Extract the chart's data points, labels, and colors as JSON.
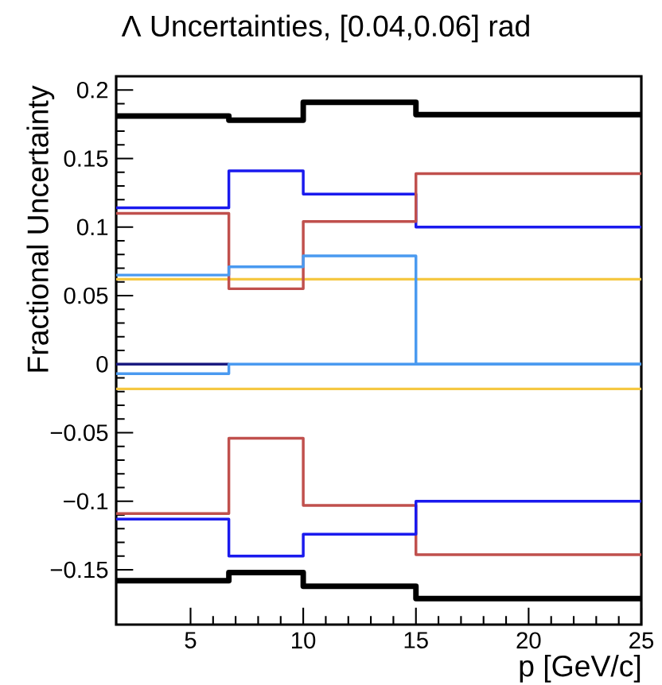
{
  "chart_data": {
    "type": "step",
    "title": "Λ Uncertainties, [0.04,0.06] rad",
    "xlabel": "p [GeV/c]",
    "ylabel": "Fractional Uncertainty",
    "x": [
      1.7,
      6.7,
      10,
      15,
      25
    ],
    "series": [
      {
        "color": "#000000",
        "values": [
          0.181,
          0.178,
          0.191,
          0.182,
          0.182
        ]
      },
      {
        "color": "#1a1aee",
        "values": [
          0.114,
          0.141,
          0.124,
          0.1,
          0.1
        ]
      },
      {
        "color": "#c0504d",
        "values": [
          0.11,
          0.055,
          0.104,
          0.139,
          0.139
        ]
      },
      {
        "color": "#4a9af0",
        "values": [
          0.065,
          0.071,
          0.079,
          0.0,
          0.0
        ]
      },
      {
        "color": "#1a1a80",
        "values": [
          0.0,
          0.0,
          null,
          null,
          null
        ]
      },
      {
        "color": "#4a9af0",
        "values": [
          -0.007,
          0.0,
          0.0,
          0.0,
          0.0
        ]
      },
      {
        "color": "#c0504d",
        "values": [
          -0.109,
          -0.054,
          -0.103,
          -0.139,
          -0.139
        ]
      },
      {
        "color": "#1a1aee",
        "values": [
          -0.113,
          -0.14,
          -0.124,
          -0.1,
          -0.1
        ]
      },
      {
        "color": "#000000",
        "values": [
          -0.158,
          -0.152,
          -0.162,
          -0.171,
          -0.171
        ]
      }
    ],
    "ref_lines": [
      {
        "axis": "y",
        "value": 0.062,
        "color": "#f5c842"
      },
      {
        "axis": "y",
        "value": -0.018,
        "color": "#f5c842"
      }
    ],
    "xlim": [
      1.7,
      25
    ],
    "ylim": [
      -0.19,
      0.21
    ],
    "xticks": [
      5,
      10,
      15,
      20,
      25
    ],
    "yticks": [
      {
        "value": -0.15,
        "label": "−0.15"
      },
      {
        "value": -0.1,
        "label": "−0.1"
      },
      {
        "value": -0.05,
        "label": "−0.05"
      },
      0,
      0.05,
      0.1,
      0.15,
      0.2
    ],
    "grid": false
  }
}
